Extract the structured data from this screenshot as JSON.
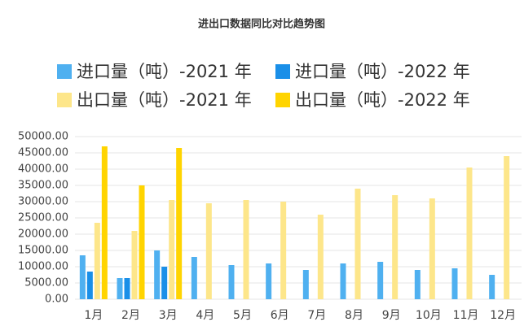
{
  "chart_data": {
    "type": "bar",
    "title": "进出口数据同比对比趋势图",
    "categories": [
      "1月",
      "2月",
      "3月",
      "4月",
      "5月",
      "6月",
      "7月",
      "8月",
      "9月",
      "10月",
      "11月",
      "12月"
    ],
    "series": [
      {
        "name": "进口量（吨）-2021 年",
        "color": "#4fb0f0",
        "values": [
          13500,
          6500,
          15000,
          13000,
          10500,
          11000,
          9000,
          11000,
          11500,
          9000,
          9500,
          7500
        ]
      },
      {
        "name": "进口量（吨）-2022 年",
        "color": "#1a8fe8",
        "values": [
          8500,
          6500,
          10000,
          null,
          null,
          null,
          null,
          null,
          null,
          null,
          null,
          null
        ]
      },
      {
        "name": "出口量（吨）-2021 年",
        "color": "#fde68a",
        "values": [
          23500,
          21000,
          30500,
          29500,
          30500,
          30000,
          26000,
          34000,
          32000,
          31000,
          40500,
          44000
        ]
      },
      {
        "name": "出口量（吨）-2022 年",
        "color": "#ffd400",
        "values": [
          47000,
          35000,
          46500,
          null,
          null,
          null,
          null,
          null,
          null,
          null,
          null,
          null
        ]
      }
    ],
    "ylim": [
      0,
      50000
    ],
    "yticks": [
      {
        "value": 0,
        "label": "0.00"
      },
      {
        "value": 5000,
        "label": "5000.00"
      },
      {
        "value": 10000,
        "label": "10000.00"
      },
      {
        "value": 15000,
        "label": "15000.00"
      },
      {
        "value": 20000,
        "label": "20000.00"
      },
      {
        "value": 25000,
        "label": "25000.00"
      },
      {
        "value": 30000,
        "label": "30000.00"
      },
      {
        "value": 35000,
        "label": "35000.00"
      },
      {
        "value": 40000,
        "label": "40000.00"
      },
      {
        "value": 45000,
        "label": "45000.00"
      },
      {
        "value": 50000,
        "label": "50000.00"
      }
    ],
    "grid": true
  }
}
